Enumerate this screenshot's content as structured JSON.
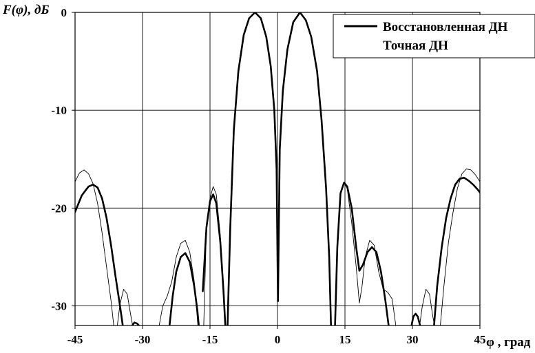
{
  "chart_data": {
    "type": "line",
    "ylabel": "F(φ), дБ",
    "xlabel": "φ , град",
    "xlim": [
      -45,
      45
    ],
    "ylim": [
      -32,
      0
    ],
    "x_ticks": [
      -45,
      -30,
      -15,
      0,
      15,
      30,
      45
    ],
    "x_tick_labels": [
      "-45",
      "-30",
      "-15",
      "0",
      "15",
      "30",
      "45"
    ],
    "y_ticks": [
      0,
      -10,
      -20,
      -30
    ],
    "y_tick_labels": [
      "0",
      "-10",
      "-20",
      "-30"
    ],
    "grid": true,
    "legend_position": "top-right",
    "series": [
      {
        "name": "Восстановленная ДН",
        "color": "#000000",
        "style": "thick",
        "segments": [
          [
            [
              -45,
              -20.4
            ],
            [
              -43.5,
              -18.7
            ],
            [
              -42,
              -17.8
            ],
            [
              -41,
              -17.6
            ],
            [
              -40,
              -17.9
            ],
            [
              -39,
              -19
            ],
            [
              -38,
              -21
            ],
            [
              -37,
              -23.8
            ],
            [
              -36,
              -27
            ],
            [
              -35,
              -30
            ],
            [
              -34.4,
              -32
            ]
          ],
          [
            [
              -32.3,
              -32
            ],
            [
              -31.8,
              -31.7
            ],
            [
              -31.2,
              -31.8
            ],
            [
              -30.8,
              -32
            ]
          ],
          [
            [
              -24,
              -32
            ],
            [
              -23.3,
              -29
            ],
            [
              -22.5,
              -26.5
            ],
            [
              -21.5,
              -25
            ],
            [
              -20.5,
              -24.6
            ],
            [
              -19.5,
              -25.5
            ],
            [
              -18.5,
              -28
            ],
            [
              -17.8,
              -30.5
            ],
            [
              -17.5,
              -32
            ]
          ],
          [
            [
              -16.6,
              -28.5
            ],
            [
              -15.8,
              -22
            ],
            [
              -15,
              -19.3
            ],
            [
              -14.3,
              -18.6
            ],
            [
              -13.6,
              -19.5
            ],
            [
              -12.7,
              -23.5
            ],
            [
              -12,
              -28.5
            ],
            [
              -11.6,
              -32
            ]
          ],
          [
            [
              -11.1,
              -32
            ],
            [
              -10.5,
              -22
            ],
            [
              -9.7,
              -12
            ],
            [
              -8.7,
              -6
            ],
            [
              -7.5,
              -2.3
            ],
            [
              -6.3,
              -0.6
            ],
            [
              -5,
              0
            ],
            [
              -3.7,
              -0.6
            ],
            [
              -2.5,
              -2.5
            ],
            [
              -1.5,
              -5.5
            ],
            [
              -0.7,
              -10
            ],
            [
              -0.2,
              -16
            ],
            [
              0.1,
              -29.5
            ]
          ],
          [
            [
              0.1,
              -29.5
            ],
            [
              0.5,
              -14
            ],
            [
              1.2,
              -8
            ],
            [
              2.2,
              -3.8
            ],
            [
              3.5,
              -1
            ],
            [
              5,
              0
            ],
            [
              6.3,
              -0.8
            ],
            [
              7.5,
              -2.5
            ],
            [
              8.8,
              -6
            ],
            [
              9.8,
              -11
            ],
            [
              10.8,
              -18
            ],
            [
              11.5,
              -25
            ],
            [
              11.9,
              -32
            ]
          ],
          [
            [
              12.8,
              -32
            ],
            [
              13.3,
              -24
            ],
            [
              14,
              -18.5
            ],
            [
              14.8,
              -17.4
            ],
            [
              15.5,
              -17.8
            ],
            [
              16.5,
              -20
            ],
            [
              17.5,
              -24
            ],
            [
              18.2,
              -26.4
            ],
            [
              19,
              -25.8
            ],
            [
              20,
              -24.5
            ],
            [
              21,
              -24
            ],
            [
              22,
              -24.5
            ],
            [
              23,
              -26.5
            ],
            [
              24,
              -29.5
            ],
            [
              24.7,
              -32
            ]
          ],
          [
            [
              29.8,
              -32
            ],
            [
              30.2,
              -31.1
            ],
            [
              30.7,
              -30.8
            ],
            [
              31.2,
              -31.1
            ],
            [
              31.7,
              -32
            ]
          ],
          [
            [
              34.8,
              -32
            ],
            [
              35.5,
              -28
            ],
            [
              36.5,
              -24
            ],
            [
              37.5,
              -21
            ],
            [
              38.5,
              -19
            ],
            [
              39.5,
              -17.6
            ],
            [
              40.5,
              -17
            ],
            [
              41.5,
              -16.9
            ],
            [
              42.5,
              -17.2
            ],
            [
              43.5,
              -17.6
            ],
            [
              44.5,
              -18.1
            ],
            [
              45,
              -18.4
            ]
          ]
        ]
      },
      {
        "name": "Точная ДН",
        "color": "#000000",
        "style": "thin",
        "segments": [
          [
            [
              -45,
              -17.3
            ],
            [
              -44,
              -16.4
            ],
            [
              -43,
              -16.1
            ],
            [
              -42,
              -16.5
            ],
            [
              -41,
              -17.5
            ],
            [
              -40,
              -19.5
            ],
            [
              -39,
              -22.5
            ],
            [
              -38,
              -26
            ],
            [
              -37,
              -29.5
            ],
            [
              -36.4,
              -32
            ]
          ],
          [
            [
              -35.6,
              -32
            ],
            [
              -35,
              -29.8
            ],
            [
              -34.2,
              -28.3
            ],
            [
              -33.4,
              -28.8
            ],
            [
              -32.6,
              -31
            ],
            [
              -32.2,
              -32
            ]
          ],
          [
            [
              -26.3,
              -32
            ],
            [
              -25.5,
              -30
            ],
            [
              -24.5,
              -29
            ],
            [
              -23.5,
              -27.5
            ],
            [
              -22.5,
              -25
            ],
            [
              -21.5,
              -23.6
            ],
            [
              -20.5,
              -23.3
            ],
            [
              -19.5,
              -24.5
            ],
            [
              -18.5,
              -27.5
            ],
            [
              -17.7,
              -32
            ]
          ],
          [
            [
              -16.4,
              -32
            ],
            [
              -15.8,
              -22
            ],
            [
              -15,
              -19
            ],
            [
              -14.3,
              -17.8
            ],
            [
              -13.6,
              -18.6
            ],
            [
              -12.7,
              -22.8
            ],
            [
              -12,
              -28.5
            ],
            [
              -11.6,
              -32
            ]
          ],
          [
            [
              -11.1,
              -32
            ],
            [
              -10.5,
              -22
            ],
            [
              -9.7,
              -12
            ],
            [
              -8.7,
              -6
            ],
            [
              -7.5,
              -2.3
            ],
            [
              -6.3,
              -0.6
            ],
            [
              -5,
              0
            ],
            [
              -3.7,
              -0.6
            ],
            [
              -2.5,
              -2.5
            ],
            [
              -1.5,
              -5.5
            ],
            [
              -0.7,
              -10
            ],
            [
              -0.2,
              -16
            ],
            [
              0.1,
              -29.5
            ]
          ],
          [
            [
              0.1,
              -29.5
            ],
            [
              0.5,
              -14
            ],
            [
              1.2,
              -8
            ],
            [
              2.2,
              -3.8
            ],
            [
              3.5,
              -1
            ],
            [
              5,
              0
            ],
            [
              6.3,
              -0.8
            ],
            [
              7.5,
              -2.5
            ],
            [
              8.8,
              -6
            ],
            [
              9.8,
              -11
            ],
            [
              10.8,
              -18
            ],
            [
              11.5,
              -25
            ],
            [
              11.9,
              -32
            ]
          ],
          [
            [
              12.8,
              -32
            ],
            [
              13.3,
              -24
            ],
            [
              14,
              -18.5
            ],
            [
              14.8,
              -17.4
            ],
            [
              15.5,
              -18
            ],
            [
              16.5,
              -21.5
            ],
            [
              17.5,
              -26
            ],
            [
              18.2,
              -29.7
            ],
            [
              18.8,
              -28
            ],
            [
              19.5,
              -25
            ],
            [
              20.5,
              -23.3
            ],
            [
              21.5,
              -23.8
            ],
            [
              22.5,
              -26.5
            ],
            [
              23.5,
              -28.3
            ],
            [
              24.5,
              -28.6
            ],
            [
              25.5,
              -29.3
            ],
            [
              26.3,
              -32
            ]
          ],
          [
            [
              31.6,
              -32
            ],
            [
              32.2,
              -30
            ],
            [
              33,
              -28.3
            ],
            [
              33.8,
              -28.8
            ],
            [
              34.5,
              -31
            ],
            [
              34.9,
              -32
            ]
          ],
          [
            [
              36.2,
              -32
            ],
            [
              37,
              -28
            ],
            [
              38,
              -23.5
            ],
            [
              39,
              -20.5
            ],
            [
              40,
              -18
            ],
            [
              41,
              -16.5
            ],
            [
              42,
              -16
            ],
            [
              43,
              -16.1
            ],
            [
              44,
              -16.6
            ],
            [
              45,
              -17.3
            ]
          ]
        ]
      }
    ]
  }
}
